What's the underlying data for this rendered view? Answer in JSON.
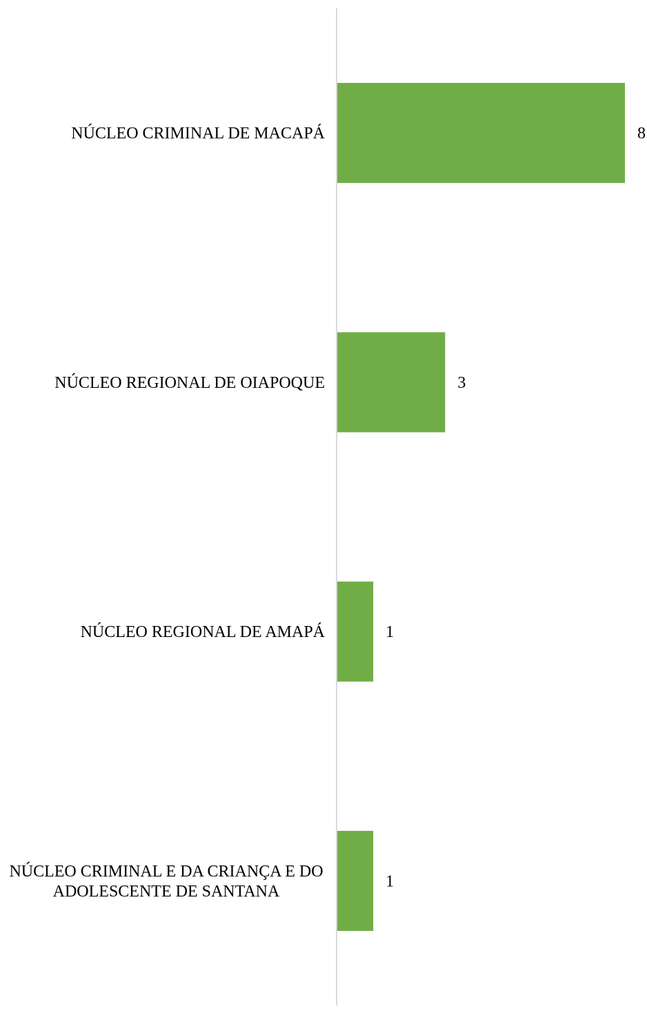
{
  "chart_data": {
    "type": "bar",
    "orientation": "horizontal",
    "categories": [
      [
        "NÚCLEO CRIMINAL DE MACAPÁ"
      ],
      [
        "NÚCLEO REGIONAL DE OIAPOQUE"
      ],
      [
        "NÚCLEO REGIONAL DE AMAPÁ"
      ],
      [
        "NÚCLEO CRIMINAL E DA CRIANÇA E DO",
        "ADOLESCENTE DE SANTANA"
      ]
    ],
    "values": [
      8,
      3,
      1,
      1
    ],
    "data_labels": [
      "8",
      "3",
      "1",
      "1"
    ],
    "xlim": [
      0,
      8
    ],
    "grid": false,
    "legend": "none",
    "colors": {
      "bar": "#70ad47",
      "axis": "#d9d9d9",
      "text": "#000000"
    }
  }
}
